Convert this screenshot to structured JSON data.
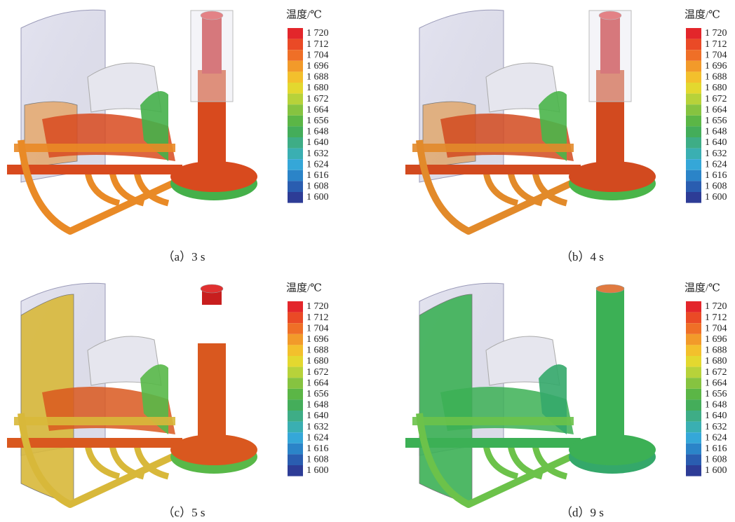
{
  "panels": [
    {
      "caption": "（a）3 s",
      "legend": {
        "title": "温度/℃",
        "labels": [
          "1 720",
          "1 712",
          "1 704",
          "1 696",
          "1 688",
          "1 680",
          "1 672",
          "1 664",
          "1 656",
          "1 648",
          "1 640",
          "1 632",
          "1 624",
          "1 616",
          "1 608",
          "1 600"
        ]
      }
    },
    {
      "caption": "（b）4 s",
      "legend": {
        "title": "温度/℃",
        "labels": [
          "1 720",
          "1 712",
          "1 704",
          "1 696",
          "1 688",
          "1 680",
          "1 672",
          "1 664",
          "1 656",
          "1 648",
          "1 640",
          "1 632",
          "1 624",
          "1 616",
          "1 608",
          "1 600"
        ]
      }
    },
    {
      "caption": "（c）5 s",
      "legend": {
        "title": "温度/℃",
        "labels": [
          "1 720",
          "1 712",
          "1 704",
          "1 696",
          "1 688",
          "1 680",
          "1 672",
          "1 664",
          "1 656",
          "1 648",
          "1 640",
          "1 632",
          "1 624",
          "1 616",
          "1 608",
          "1 600"
        ]
      }
    },
    {
      "caption": "（d）9 s",
      "legend": {
        "title": "温度/℃",
        "labels": [
          "1 720",
          "1 712",
          "1 704",
          "1 696",
          "1 688",
          "1 680",
          "1 672",
          "1 664",
          "1 656",
          "1 648",
          "1 640",
          "1 632",
          "1 624",
          "1 616",
          "1 608",
          "1 600"
        ]
      }
    }
  ]
}
